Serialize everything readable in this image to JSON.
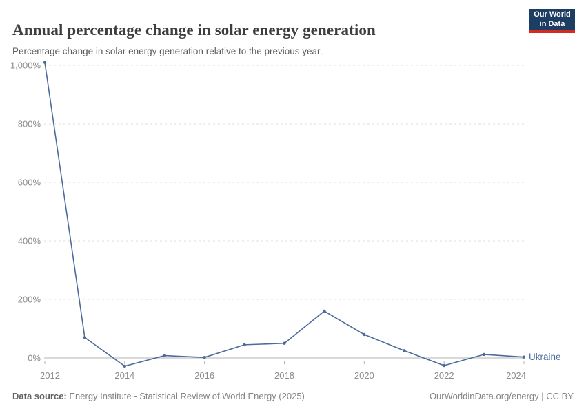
{
  "header": {
    "title": "Annual percentage change in solar energy generation",
    "subtitle": "Percentage change in solar energy generation relative to the previous year."
  },
  "logo": {
    "line1": "Our World",
    "line2": "in Data"
  },
  "chart_data": {
    "type": "line",
    "title": "Annual percentage change in solar energy generation",
    "x": [
      2012,
      2013,
      2014,
      2015,
      2016,
      2017,
      2018,
      2019,
      2020,
      2021,
      2022,
      2023,
      2024
    ],
    "series": [
      {
        "name": "Ukraine",
        "color": "#4C6A9C",
        "values": [
          1010,
          70,
          -28,
          8,
          2,
          45,
          50,
          160,
          80,
          25,
          -26,
          12,
          3
        ]
      }
    ],
    "xlabel": "",
    "ylabel": "",
    "ylim": [
      -60,
      1030
    ],
    "xlim": [
      2012,
      2024
    ],
    "yticks": [
      0,
      200,
      400,
      600,
      800,
      1000
    ],
    "ytick_labels": [
      "0%",
      "200%",
      "400%",
      "600%",
      "800%",
      "1,000%"
    ],
    "xticks": [
      2012,
      2014,
      2016,
      2018,
      2020,
      2022,
      2024
    ],
    "grid": "horizontal-dashed",
    "legend_position": "end-of-line-label"
  },
  "colors": {
    "line": "#4C6A9C",
    "entity_label": "#4C6A9C",
    "logo_background": "#1D3D63",
    "logo_bar": "#D42B21"
  },
  "footer": {
    "source_label": "Data source:",
    "source_text": " Energy Institute - Statistical Review of World Energy (2025)",
    "credit": "OurWorldinData.org/energy | CC BY"
  }
}
